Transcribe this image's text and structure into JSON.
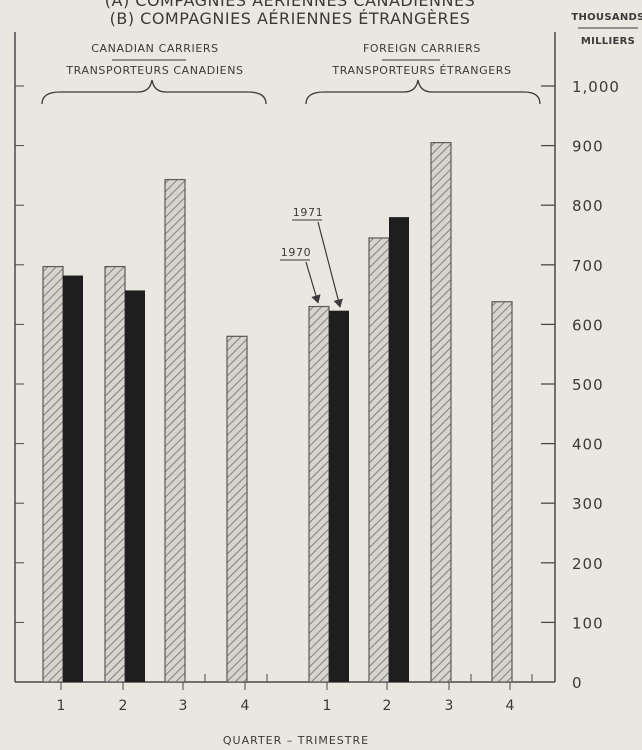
{
  "chart_data": {
    "type": "bar",
    "title_line1": "(A) COMPAGNIES AÉRIENNES CANADIENNES",
    "title_line2": "(B) COMPAGNIES AÉRIENNES ÉTRANGÈRES",
    "unit_en": "THOUSANDS",
    "unit_fr": "MILLIERS",
    "xlabel": "QUARTER – TRIMESTRE",
    "ylim": [
      0,
      1050
    ],
    "yticks": [
      {
        "value": 100,
        "label": "100"
      },
      {
        "value": 200,
        "label": "200"
      },
      {
        "value": 300,
        "label": "300"
      },
      {
        "value": 400,
        "label": "400"
      },
      {
        "value": 500,
        "label": "500"
      },
      {
        "value": 600,
        "label": "600"
      },
      {
        "value": 700,
        "label": "700"
      },
      {
        "value": 800,
        "label": "800"
      },
      {
        "value": 900,
        "label": "900"
      },
      {
        "value": 1000,
        "label": "1,000"
      }
    ],
    "zero_label": "0",
    "groups": [
      {
        "line1": "CANADIAN CARRIERS",
        "line2": "TRANSPORTEURS CANADIENS",
        "categories": [
          "1",
          "2",
          "3",
          "4"
        ]
      },
      {
        "line1": "FOREIGN CARRIERS",
        "line2": "TRANSPORTEURS ÉTRANGERS",
        "categories": [
          "1",
          "2",
          "3",
          "4"
        ]
      }
    ],
    "series": [
      {
        "name": "1970",
        "pattern": "hatched",
        "color": "#5a5a5a",
        "values": [
          697,
          697,
          843,
          580,
          630,
          745,
          905,
          638
        ]
      },
      {
        "name": "1971",
        "pattern": "solid",
        "color": "#1e1e1e",
        "values": [
          682,
          657,
          null,
          null,
          623,
          780,
          null,
          null
        ]
      }
    ],
    "annotations": [
      {
        "text": "1971",
        "target_series": 1,
        "target_index": 4
      },
      {
        "text": "1970",
        "target_series": 0,
        "target_index": 4
      }
    ]
  }
}
